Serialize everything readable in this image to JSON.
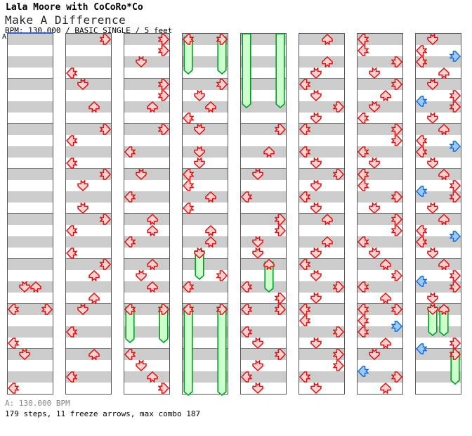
{
  "header": {
    "artist_line": "Lala Moore with CoCoRo*Co",
    "title": "Make A Difference",
    "info_line": "BPM: 130.000 / BASIC SINGLE / 5 feet"
  },
  "section_label": "A",
  "footer": {
    "bpm_line": "A: 130.000 BPM",
    "stats_line": "179 steps, 11 freeze arrows, max combo 187"
  },
  "colors": {
    "tap_fill": "#ffd2d2",
    "tap_stroke": "#dd1111",
    "blue_fill": "#9fc8f5",
    "blue_stroke": "#1170dd",
    "freeze_fill": "#ccffcc",
    "freeze_stroke": "#00a028",
    "stripe_gray": "#cccccc",
    "measure_line": "#7d7d7d",
    "column_border": "#555555",
    "section_line": "#3366cc"
  },
  "chart_data": {
    "type": "ddr-stepchart",
    "title": "Make A Difference",
    "bpm": 130.0,
    "difficulty": "BASIC SINGLE",
    "feet": 5,
    "steps": 179,
    "freeze_arrows": 11,
    "max_combo": 187,
    "rows_per_column": 32,
    "beats_per_measure": 4,
    "lanes": [
      "left",
      "down",
      "up",
      "right"
    ],
    "note_format": "[row, laneIndex, kind, holdLenRows?]  kind: r=red quarter tap, b=blue eighth tap, f=freeze arrow (head+green body), h=green hold-body continuation (no head)",
    "columns": [
      [
        [
          22,
          1,
          "r"
        ],
        [
          22,
          2,
          "r"
        ],
        [
          24,
          0,
          "r"
        ],
        [
          24,
          3,
          "r"
        ],
        [
          27,
          0,
          "r"
        ],
        [
          28,
          1,
          "r"
        ],
        [
          31,
          0,
          "r"
        ]
      ],
      [
        [
          0,
          3,
          "r"
        ],
        [
          3,
          0,
          "r"
        ],
        [
          4,
          1,
          "r"
        ],
        [
          6,
          2,
          "r"
        ],
        [
          8,
          3,
          "r"
        ],
        [
          9,
          0,
          "r"
        ],
        [
          11,
          0,
          "r"
        ],
        [
          12,
          3,
          "r"
        ],
        [
          13,
          1,
          "r"
        ],
        [
          15,
          1,
          "r"
        ],
        [
          16,
          3,
          "r"
        ],
        [
          17,
          0,
          "r"
        ],
        [
          19,
          0,
          "r"
        ],
        [
          20,
          3,
          "r"
        ],
        [
          21,
          2,
          "r"
        ],
        [
          23,
          2,
          "r"
        ],
        [
          24,
          1,
          "r"
        ],
        [
          26,
          0,
          "r"
        ],
        [
          28,
          2,
          "r"
        ],
        [
          30,
          0,
          "r"
        ]
      ],
      [
        [
          0,
          3,
          "r"
        ],
        [
          1,
          3,
          "r"
        ],
        [
          2,
          1,
          "r"
        ],
        [
          4,
          3,
          "r"
        ],
        [
          5,
          3,
          "r"
        ],
        [
          6,
          2,
          "r"
        ],
        [
          8,
          3,
          "r"
        ],
        [
          10,
          0,
          "r"
        ],
        [
          12,
          1,
          "r"
        ],
        [
          14,
          0,
          "r"
        ],
        [
          16,
          2,
          "r"
        ],
        [
          17,
          2,
          "r"
        ],
        [
          18,
          0,
          "r"
        ],
        [
          20,
          2,
          "r"
        ],
        [
          21,
          1,
          "r"
        ],
        [
          22,
          2,
          "r"
        ],
        [
          24,
          0,
          "f",
          3.5
        ],
        [
          24,
          3,
          "f",
          3.5
        ],
        [
          28,
          0,
          "r"
        ],
        [
          29,
          1,
          "r"
        ],
        [
          30,
          2,
          "r"
        ],
        [
          31,
          3,
          "r"
        ]
      ],
      [
        [
          0,
          0,
          "f",
          3.6
        ],
        [
          0,
          3,
          "f",
          3.6
        ],
        [
          4,
          3,
          "r"
        ],
        [
          5,
          1,
          "r"
        ],
        [
          6,
          2,
          "r"
        ],
        [
          7,
          0,
          "r"
        ],
        [
          8,
          1,
          "r"
        ],
        [
          10,
          1,
          "r"
        ],
        [
          11,
          1,
          "r"
        ],
        [
          12,
          0,
          "r"
        ],
        [
          13,
          0,
          "r"
        ],
        [
          14,
          2,
          "r"
        ],
        [
          15,
          0,
          "r"
        ],
        [
          17,
          2,
          "r"
        ],
        [
          18,
          2,
          "r"
        ],
        [
          19,
          1,
          "f",
          2.9
        ],
        [
          21,
          3,
          "r"
        ],
        [
          22,
          0,
          "r"
        ],
        [
          24,
          0,
          "f",
          8.2
        ],
        [
          24,
          3,
          "f",
          8.2
        ]
      ],
      [
        [
          0,
          0,
          "h",
          6.6
        ],
        [
          0,
          3,
          "h",
          6.6
        ],
        [
          8,
          3,
          "r"
        ],
        [
          10,
          2,
          "r"
        ],
        [
          12,
          1,
          "r"
        ],
        [
          14,
          0,
          "r"
        ],
        [
          16,
          3,
          "r"
        ],
        [
          17,
          3,
          "r"
        ],
        [
          18,
          1,
          "r"
        ],
        [
          19,
          1,
          "r"
        ],
        [
          20,
          2,
          "f",
          3
        ],
        [
          22,
          0,
          "r"
        ],
        [
          23,
          3,
          "r"
        ],
        [
          24,
          0,
          "r"
        ],
        [
          24,
          3,
          "r"
        ],
        [
          26,
          0,
          "r"
        ],
        [
          27,
          1,
          "r"
        ],
        [
          28,
          3,
          "r"
        ],
        [
          29,
          1,
          "r"
        ],
        [
          30,
          0,
          "r"
        ],
        [
          31,
          1,
          "r"
        ]
      ],
      [
        [
          0,
          2,
          "r"
        ],
        [
          2,
          2,
          "r"
        ],
        [
          3,
          1,
          "r"
        ],
        [
          4,
          0,
          "r"
        ],
        [
          5,
          1,
          "r"
        ],
        [
          6,
          3,
          "r"
        ],
        [
          7,
          1,
          "r"
        ],
        [
          8,
          0,
          "r"
        ],
        [
          10,
          0,
          "r"
        ],
        [
          11,
          1,
          "r"
        ],
        [
          12,
          3,
          "r"
        ],
        [
          13,
          1,
          "r"
        ],
        [
          14,
          0,
          "r"
        ],
        [
          15,
          1,
          "r"
        ],
        [
          16,
          2,
          "r"
        ],
        [
          18,
          2,
          "r"
        ],
        [
          19,
          1,
          "r"
        ],
        [
          20,
          0,
          "r"
        ],
        [
          21,
          1,
          "r"
        ],
        [
          22,
          3,
          "r"
        ],
        [
          23,
          1,
          "r"
        ],
        [
          24,
          0,
          "r"
        ],
        [
          25,
          0,
          "r"
        ],
        [
          26,
          3,
          "r"
        ],
        [
          27,
          1,
          "r"
        ],
        [
          28,
          3,
          "r"
        ],
        [
          29,
          3,
          "r"
        ],
        [
          30,
          0,
          "r"
        ],
        [
          31,
          1,
          "r"
        ]
      ],
      [
        [
          0,
          0,
          "r"
        ],
        [
          1,
          0,
          "r"
        ],
        [
          2,
          3,
          "r"
        ],
        [
          3,
          1,
          "r"
        ],
        [
          4,
          3,
          "r"
        ],
        [
          5,
          2,
          "r"
        ],
        [
          6,
          1,
          "r"
        ],
        [
          7,
          0,
          "r"
        ],
        [
          8,
          3,
          "r"
        ],
        [
          9,
          3,
          "r"
        ],
        [
          10,
          0,
          "r"
        ],
        [
          11,
          1,
          "r"
        ],
        [
          12,
          0,
          "r"
        ],
        [
          13,
          0,
          "r"
        ],
        [
          14,
          3,
          "r"
        ],
        [
          15,
          1,
          "r"
        ],
        [
          16,
          3,
          "r"
        ],
        [
          17,
          3,
          "r"
        ],
        [
          18,
          0,
          "r"
        ],
        [
          19,
          1,
          "r"
        ],
        [
          20,
          2,
          "r"
        ],
        [
          21,
          3,
          "r"
        ],
        [
          22,
          0,
          "r"
        ],
        [
          23,
          2,
          "r"
        ],
        [
          24,
          0,
          "r"
        ],
        [
          24,
          3,
          "r"
        ],
        [
          25,
          0,
          "r"
        ],
        [
          25.5,
          3,
          "b"
        ],
        [
          26,
          0,
          "r"
        ],
        [
          27,
          2,
          "r"
        ],
        [
          28,
          1,
          "r"
        ],
        [
          29.5,
          0,
          "b"
        ],
        [
          30,
          3,
          "r"
        ],
        [
          31,
          2,
          "r"
        ]
      ],
      [
        [
          0,
          1,
          "r"
        ],
        [
          1,
          0,
          "r"
        ],
        [
          1.5,
          3,
          "b"
        ],
        [
          2,
          0,
          "r"
        ],
        [
          3,
          2,
          "r"
        ],
        [
          4,
          1,
          "r"
        ],
        [
          5,
          3,
          "r"
        ],
        [
          5.5,
          0,
          "b"
        ],
        [
          6,
          3,
          "r"
        ],
        [
          7,
          1,
          "r"
        ],
        [
          8,
          2,
          "r"
        ],
        [
          9,
          0,
          "r"
        ],
        [
          9.5,
          3,
          "b"
        ],
        [
          10,
          0,
          "r"
        ],
        [
          11,
          1,
          "r"
        ],
        [
          12,
          2,
          "r"
        ],
        [
          13,
          3,
          "r"
        ],
        [
          13.5,
          0,
          "b"
        ],
        [
          14,
          3,
          "r"
        ],
        [
          15,
          1,
          "r"
        ],
        [
          16,
          2,
          "r"
        ],
        [
          17,
          0,
          "r"
        ],
        [
          17.5,
          3,
          "b"
        ],
        [
          18,
          0,
          "r"
        ],
        [
          19,
          1,
          "r"
        ],
        [
          20,
          2,
          "r"
        ],
        [
          21,
          3,
          "r"
        ],
        [
          21.5,
          0,
          "b"
        ],
        [
          22,
          3,
          "r"
        ],
        [
          23,
          1,
          "r"
        ],
        [
          24,
          1,
          "f",
          2.9
        ],
        [
          24,
          2,
          "f",
          2.9
        ],
        [
          27,
          3,
          "r"
        ],
        [
          27.5,
          0,
          "b"
        ],
        [
          28,
          3,
          "f",
          3.2
        ]
      ]
    ]
  }
}
